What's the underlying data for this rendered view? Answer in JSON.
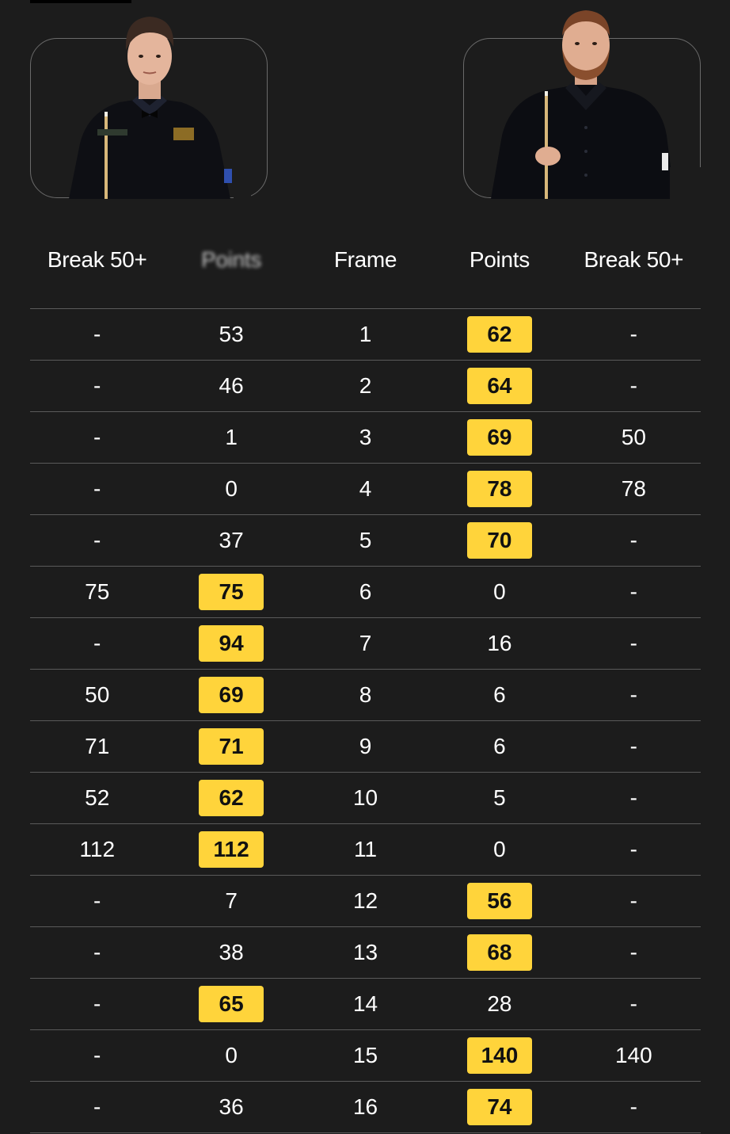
{
  "colors": {
    "background": "#1c1c1c",
    "win_badge": "#ffd43b",
    "divider": "#5a5a5a"
  },
  "players": {
    "left": {
      "photo": "player-photo-icon"
    },
    "right": {
      "photo": "player-photo-icon"
    }
  },
  "table": {
    "headers": [
      "Break 50+",
      "Points",
      "Frame",
      "Points",
      "Break 50+"
    ],
    "rows": [
      {
        "l_break": "-",
        "l_points": "53",
        "frame": "1",
        "r_points": "62",
        "r_break": "-",
        "winner": "right"
      },
      {
        "l_break": "-",
        "l_points": "46",
        "frame": "2",
        "r_points": "64",
        "r_break": "-",
        "winner": "right"
      },
      {
        "l_break": "-",
        "l_points": "1",
        "frame": "3",
        "r_points": "69",
        "r_break": "50",
        "winner": "right"
      },
      {
        "l_break": "-",
        "l_points": "0",
        "frame": "4",
        "r_points": "78",
        "r_break": "78",
        "winner": "right"
      },
      {
        "l_break": "-",
        "l_points": "37",
        "frame": "5",
        "r_points": "70",
        "r_break": "-",
        "winner": "right"
      },
      {
        "l_break": "75",
        "l_points": "75",
        "frame": "6",
        "r_points": "0",
        "r_break": "-",
        "winner": "left"
      },
      {
        "l_break": "-",
        "l_points": "94",
        "frame": "7",
        "r_points": "16",
        "r_break": "-",
        "winner": "left"
      },
      {
        "l_break": "50",
        "l_points": "69",
        "frame": "8",
        "r_points": "6",
        "r_break": "-",
        "winner": "left"
      },
      {
        "l_break": "71",
        "l_points": "71",
        "frame": "9",
        "r_points": "6",
        "r_break": "-",
        "winner": "left"
      },
      {
        "l_break": "52",
        "l_points": "62",
        "frame": "10",
        "r_points": "5",
        "r_break": "-",
        "winner": "left"
      },
      {
        "l_break": "112",
        "l_points": "112",
        "frame": "11",
        "r_points": "0",
        "r_break": "-",
        "winner": "left"
      },
      {
        "l_break": "-",
        "l_points": "7",
        "frame": "12",
        "r_points": "56",
        "r_break": "-",
        "winner": "right"
      },
      {
        "l_break": "-",
        "l_points": "38",
        "frame": "13",
        "r_points": "68",
        "r_break": "-",
        "winner": "right"
      },
      {
        "l_break": "-",
        "l_points": "65",
        "frame": "14",
        "r_points": "28",
        "r_break": "-",
        "winner": "left"
      },
      {
        "l_break": "-",
        "l_points": "0",
        "frame": "15",
        "r_points": "140",
        "r_break": "140",
        "winner": "right"
      },
      {
        "l_break": "-",
        "l_points": "36",
        "frame": "16",
        "r_points": "74",
        "r_break": "-",
        "winner": "right"
      }
    ]
  }
}
